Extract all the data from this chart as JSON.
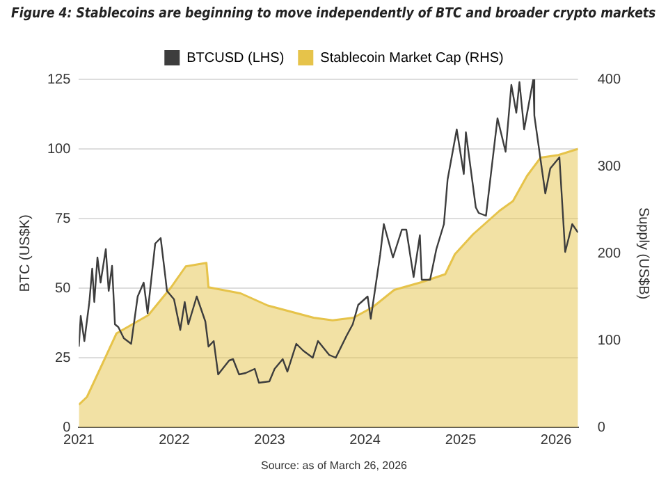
{
  "chart_data": {
    "type": "line",
    "title": "Figure 4: Stablecoins are beginning to move independently of BTC and broader crypto markets",
    "ylabel": "BTC (US$K)",
    "y2label": "Supply (US$B)",
    "legend": "top",
    "grid": "y",
    "xlim": [
      "2021-01-01",
      "2026-03-26"
    ],
    "xticks": [
      {
        "value": "2021-01-01",
        "label": "2021"
      },
      {
        "value": "2022-01-01",
        "label": "2022"
      },
      {
        "value": "2023-01-01",
        "label": "2023"
      },
      {
        "value": "2024-01-01",
        "label": "2024"
      },
      {
        "value": "2025-01-01",
        "label": "2025"
      },
      {
        "value": "2026-01-01",
        "label": "2026"
      }
    ],
    "ylim": [
      0,
      125
    ],
    "yticks": [
      0,
      25,
      50,
      75,
      100,
      125
    ],
    "y2lim": [
      0,
      400
    ],
    "y2ticks": [
      0,
      100,
      200,
      300,
      400
    ],
    "series": [
      {
        "name": "BTCUSD (LHS)",
        "type": "line",
        "axis": "y",
        "color": "#3d3d3d",
        "x": [
          "2021-01-01",
          "2021-01-08",
          "2021-01-22",
          "2021-02-10",
          "2021-02-21",
          "2021-03-01",
          "2021-03-13",
          "2021-03-25",
          "2021-04-14",
          "2021-04-25",
          "2021-05-08",
          "2021-05-19",
          "2021-06-01",
          "2021-06-22",
          "2021-07-20",
          "2021-08-14",
          "2021-09-06",
          "2021-09-21",
          "2021-10-20",
          "2021-11-10",
          "2021-11-28",
          "2021-12-04",
          "2021-12-31",
          "2022-01-24",
          "2022-02-10",
          "2022-02-24",
          "2022-03-28",
          "2022-04-30",
          "2022-05-12",
          "2022-06-01",
          "2022-06-18",
          "2022-07-30",
          "2022-08-14",
          "2022-09-06",
          "2022-10-01",
          "2022-11-05",
          "2022-11-21",
          "2022-12-31",
          "2023-01-20",
          "2023-02-20",
          "2023-03-10",
          "2023-04-13",
          "2023-05-10",
          "2023-06-15",
          "2023-07-05",
          "2023-08-17",
          "2023-09-11",
          "2023-10-23",
          "2023-11-15",
          "2023-12-06",
          "2024-01-11",
          "2024-01-23",
          "2024-02-28",
          "2024-03-13",
          "2024-04-17",
          "2024-05-21",
          "2024-06-07",
          "2024-07-05",
          "2024-07-29",
          "2024-08-05",
          "2024-09-06",
          "2024-09-30",
          "2024-10-29",
          "2024-11-12",
          "2024-12-17",
          "2025-01-13",
          "2025-01-21",
          "2025-02-28",
          "2025-03-11",
          "2025-04-08",
          "2025-05-22",
          "2025-06-22",
          "2025-07-14",
          "2025-08-02",
          "2025-08-14",
          "2025-09-01",
          "2025-10-06",
          "2025-10-10",
          "2025-11-21",
          "2025-12-10",
          "2026-01-14",
          "2026-02-05",
          "2026-03-04",
          "2026-03-26"
        ],
        "values": [
          29,
          40,
          31,
          45,
          57,
          45,
          61,
          52,
          64,
          49,
          58,
          37,
          36,
          32,
          30,
          47,
          52,
          41,
          66,
          68,
          54,
          49,
          46,
          35,
          45,
          37,
          47,
          38,
          29,
          31,
          19,
          24,
          24.5,
          19,
          19.5,
          21,
          16,
          16.5,
          21,
          24.5,
          20,
          30,
          27.5,
          25,
          31,
          26,
          25,
          33,
          37,
          44,
          47,
          39,
          62,
          73,
          61,
          71,
          71,
          54,
          69,
          53,
          53,
          64,
          73,
          89,
          107,
          91,
          106,
          79,
          77,
          76,
          111,
          99,
          123,
          113,
          124,
          107,
          125,
          112,
          84,
          93,
          97,
          63,
          73,
          70
        ]
      },
      {
        "name": "Stablecoin Market Cap (RHS)",
        "type": "area",
        "axis": "y2",
        "color": "#e6c34a",
        "x": [
          "2021-01-01",
          "2021-02-01",
          "2021-04-01",
          "2021-05-25",
          "2021-09-24",
          "2021-12-20",
          "2022-02-14",
          "2022-05-04",
          "2022-05-12",
          "2022-09-12",
          "2022-12-25",
          "2023-06-18",
          "2023-08-30",
          "2023-11-18",
          "2024-01-30",
          "2024-04-22",
          "2024-08-06",
          "2024-11-03",
          "2024-12-10",
          "2025-02-18",
          "2025-05-30",
          "2025-07-20",
          "2025-09-12",
          "2025-11-03",
          "2026-01-10",
          "2026-03-26"
        ],
        "values": [
          26,
          35,
          73,
          108,
          129,
          161,
          185,
          189,
          161,
          154,
          140,
          126,
          123,
          126,
          138,
          158,
          167,
          176,
          199,
          222,
          249,
          260,
          289,
          310,
          313,
          320
        ]
      }
    ],
    "annotations": [
      "Source: as of March 26, 2026"
    ]
  }
}
